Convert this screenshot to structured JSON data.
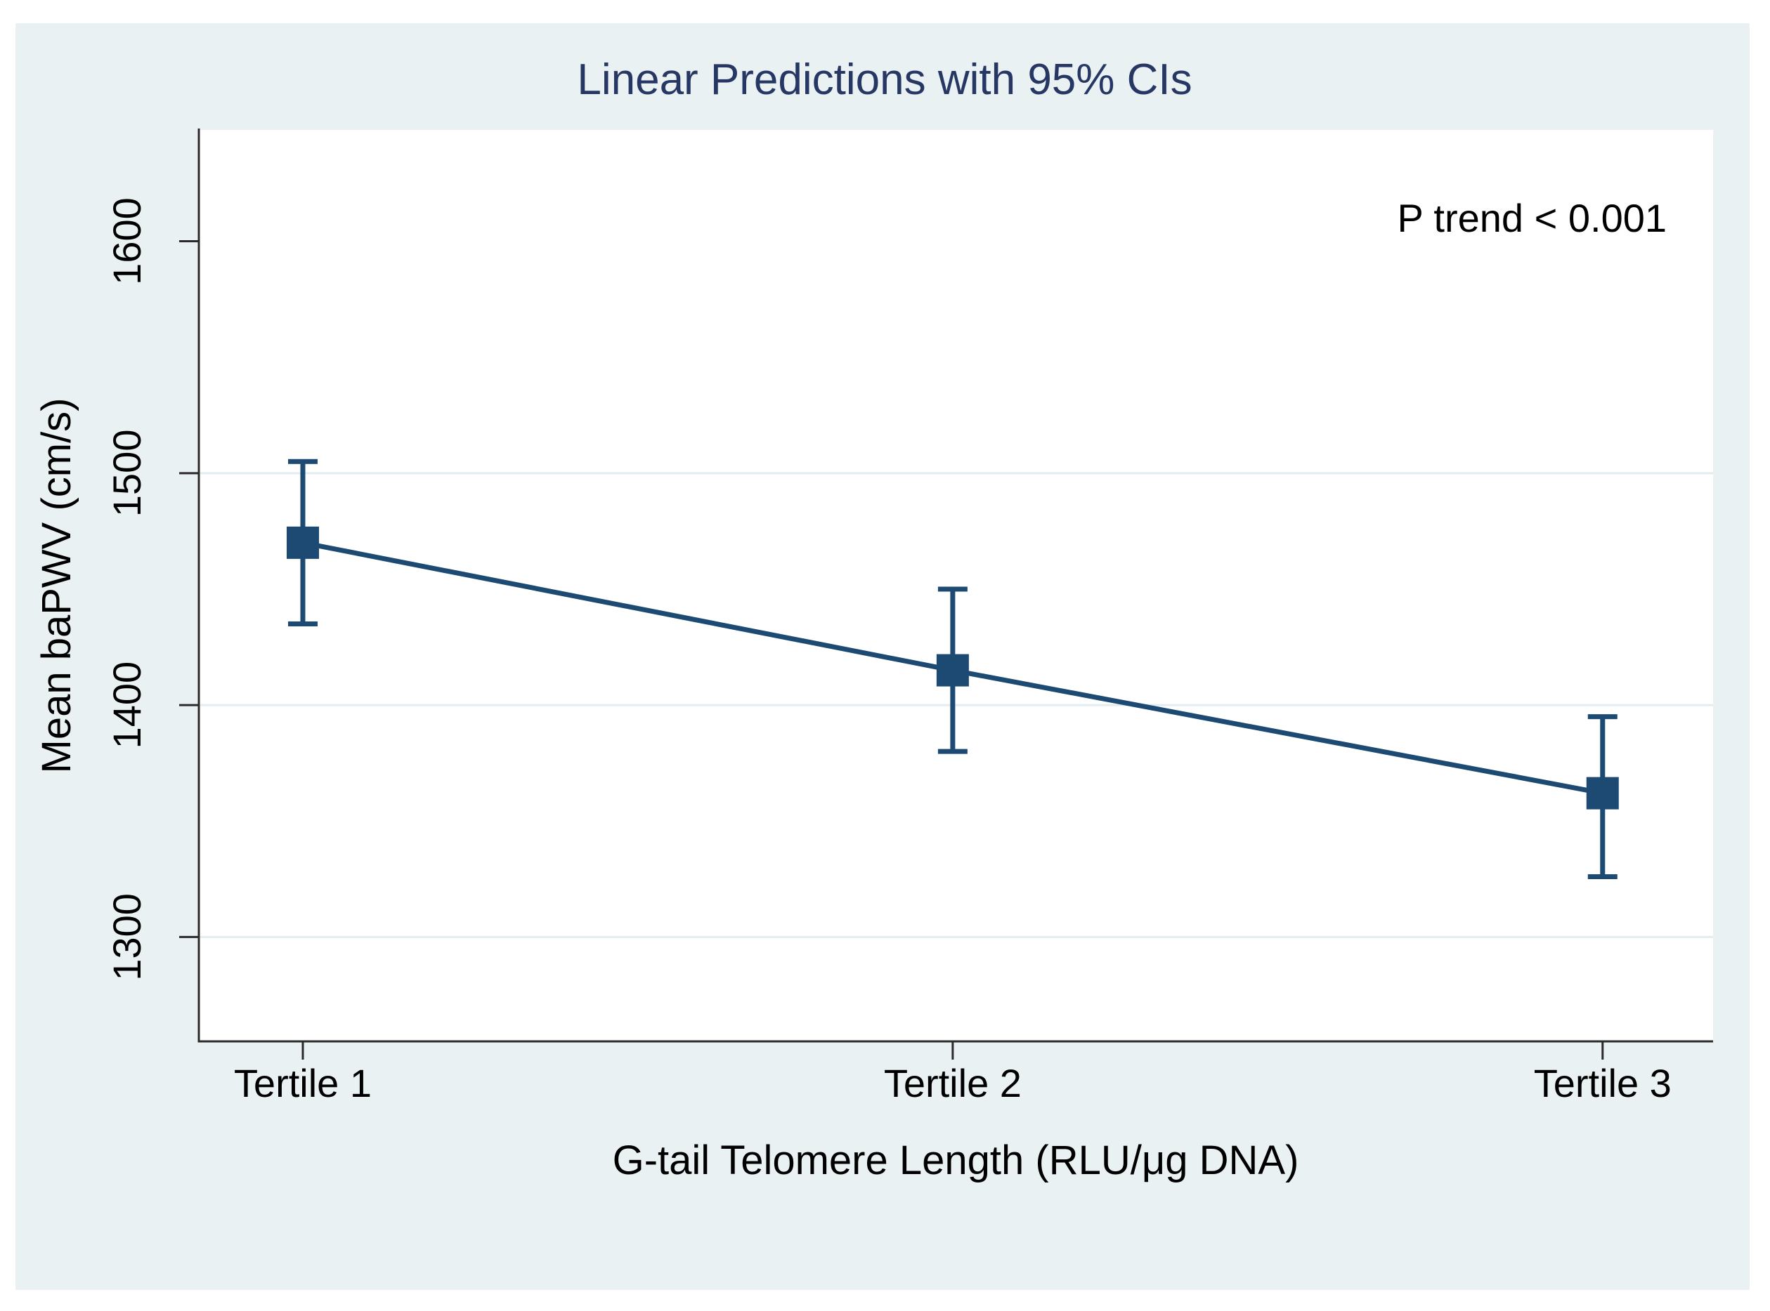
{
  "figure": {
    "title": "Linear Predictions with 95% CIs",
    "annotation": "P trend < 0.001"
  },
  "colors": {
    "page_bg": "#ffffff",
    "canvas_bg": "#eaf1f3",
    "plot_bg": "#ffffff",
    "series": "#1d4a73",
    "title_text": "#273763",
    "axis_line": "#2a2a2a",
    "gridline": "#e3edf0",
    "text": "#000000"
  },
  "chart_data": {
    "type": "line",
    "title": "Linear Predictions with 95% CIs",
    "xlabel": "G-tail Telomere Length (RLU/μg DNA)",
    "ylabel": "Mean baPWV (cm/s)",
    "annotation": "P trend < 0.001",
    "categories": [
      "Tertile 1",
      "Tertile 2",
      "Tertile 3"
    ],
    "x": [
      1,
      2,
      3
    ],
    "series": [
      {
        "name": "Linear prediction with 95% CI",
        "values": [
          1470,
          1415,
          1362
        ],
        "ci_low": [
          1435,
          1380,
          1326
        ],
        "ci_high": [
          1505,
          1450,
          1395
        ]
      }
    ],
    "xlim": [
      0.84,
      3.17
    ],
    "ylim": [
      1255,
      1648
    ],
    "yticks": [
      1300,
      1400,
      1500,
      1600
    ],
    "grid_yticks": [
      1300,
      1400,
      1500
    ],
    "marker": "square",
    "error_bars": "95% CI",
    "legend": "none",
    "grid": "horizontal"
  }
}
